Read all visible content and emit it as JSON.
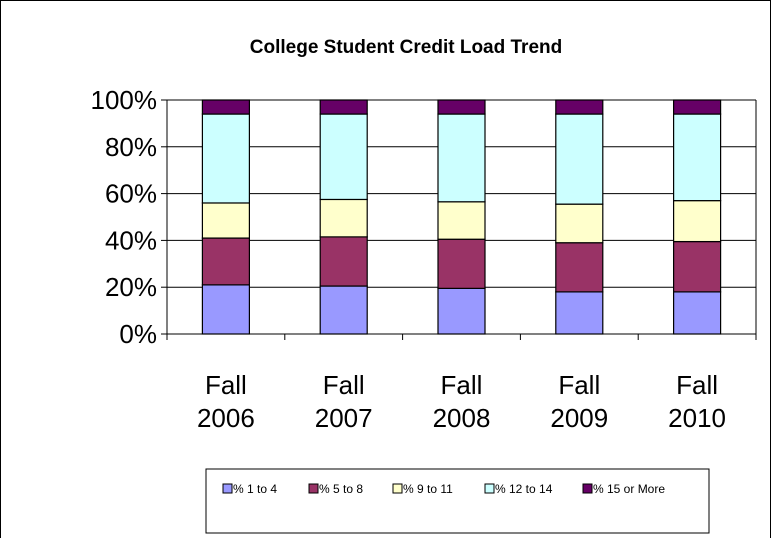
{
  "chart_data": {
    "type": "bar",
    "stacked": true,
    "normalized": true,
    "title": "College Student Credit Load Trend",
    "xlabel": "",
    "ylabel": "",
    "ylim": [
      0,
      100
    ],
    "yticks": [
      "0%",
      "20%",
      "40%",
      "60%",
      "80%",
      "100%"
    ],
    "categories": [
      [
        "Fall",
        "2006"
      ],
      [
        "Fall",
        "2007"
      ],
      [
        "Fall",
        "2008"
      ],
      [
        "Fall",
        "2009"
      ],
      [
        "Fall",
        "2010"
      ]
    ],
    "series": [
      {
        "name": "% 1 to 4",
        "color": "#9999ff",
        "values": [
          21,
          20.5,
          19.5,
          18,
          18
        ]
      },
      {
        "name": "% 5 to 8",
        "color": "#993366",
        "values": [
          20,
          21,
          21,
          21,
          21.5
        ]
      },
      {
        "name": "% 9 to 11",
        "color": "#ffffcc",
        "values": [
          15,
          16,
          16,
          16.5,
          17.5
        ]
      },
      {
        "name": "% 12 to 14",
        "color": "#ccffff",
        "values": [
          38,
          36.5,
          37.5,
          38.5,
          37
        ]
      },
      {
        "name": "% 15 or More",
        "color": "#660066",
        "values": [
          6,
          6,
          6,
          6,
          6
        ]
      }
    ],
    "grid": true,
    "legend_position": "bottom"
  }
}
